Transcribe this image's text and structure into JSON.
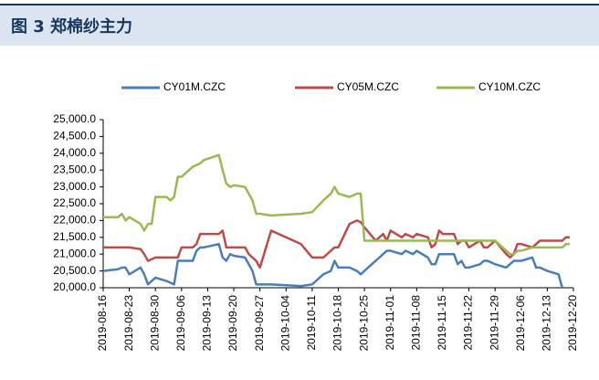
{
  "header": {
    "title": "图 3 郑棉纱主力"
  },
  "chart_data": {
    "type": "line",
    "x": [
      "2019-08-16",
      "2019-08-20",
      "2019-08-21",
      "2019-08-22",
      "2019-08-23",
      "2019-08-26",
      "2019-08-27",
      "2019-08-28",
      "2019-08-29",
      "2019-08-30",
      "2019-09-02",
      "2019-09-03",
      "2019-09-04",
      "2019-09-05",
      "2019-09-06",
      "2019-09-09",
      "2019-09-10",
      "2019-09-11",
      "2019-09-12",
      "2019-09-16",
      "2019-09-17",
      "2019-09-18",
      "2019-09-19",
      "2019-09-20",
      "2019-09-23",
      "2019-09-24",
      "2019-09-25",
      "2019-09-26",
      "2019-09-27",
      "2019-09-30",
      "2019-10-08",
      "2019-10-11",
      "2019-10-14",
      "2019-10-16",
      "2019-10-17",
      "2019-10-18",
      "2019-10-21",
      "2019-10-23",
      "2019-10-24",
      "2019-10-25",
      "2019-10-28",
      "2019-10-29",
      "2019-10-30",
      "2019-10-31",
      "2019-11-01",
      "2019-11-04",
      "2019-11-05",
      "2019-11-07",
      "2019-11-08",
      "2019-11-11",
      "2019-11-12",
      "2019-11-13",
      "2019-11-14",
      "2019-11-15",
      "2019-11-18",
      "2019-11-19",
      "2019-11-20",
      "2019-11-21",
      "2019-11-22",
      "2019-11-25",
      "2019-11-26",
      "2019-11-27",
      "2019-11-29",
      "2019-12-02",
      "2019-12-03",
      "2019-12-04",
      "2019-12-05",
      "2019-12-06",
      "2019-12-09",
      "2019-12-10",
      "2019-12-11",
      "2019-12-13",
      "2019-12-16",
      "2019-12-17",
      "2019-12-18",
      "2019-12-19"
    ],
    "series": [
      {
        "name": "CY01M.CZC",
        "color": "#4a7ebb",
        "values": [
          20500,
          20550,
          20600,
          20600,
          20400,
          20600,
          20400,
          20100,
          20200,
          20300,
          20200,
          20150,
          20100,
          20800,
          20800,
          20800,
          21100,
          21200,
          21200,
          21300,
          20900,
          20800,
          21000,
          20950,
          20900,
          20700,
          20500,
          20100,
          20100,
          20100,
          20050,
          20100,
          20400,
          20500,
          20800,
          20600,
          20600,
          20500,
          20400,
          20500,
          20800,
          20900,
          21000,
          21100,
          21100,
          21000,
          21100,
          21000,
          21100,
          20900,
          20700,
          20700,
          21000,
          21000,
          21000,
          20700,
          20800,
          20600,
          20600,
          20700,
          20800,
          20800,
          20700,
          20600,
          20700,
          20800,
          20800,
          20800,
          20900,
          20600,
          20600,
          20500,
          20400,
          20000,
          null,
          null
        ]
      },
      {
        "name": "CY05M.CZC",
        "color": "#be4b48",
        "values": [
          21200,
          21200,
          21200,
          21200,
          21200,
          21150,
          21000,
          20800,
          20850,
          20900,
          20900,
          20900,
          20900,
          20900,
          21200,
          21200,
          21300,
          21600,
          21600,
          21600,
          21700,
          21200,
          21200,
          21200,
          21200,
          21000,
          20900,
          20800,
          20600,
          21700,
          21300,
          20900,
          20900,
          21100,
          21200,
          21200,
          21900,
          22000,
          21950,
          21800,
          21400,
          21500,
          21600,
          21400,
          21700,
          21500,
          21600,
          21500,
          21600,
          21500,
          21200,
          21300,
          21700,
          21600,
          21600,
          21300,
          21400,
          21400,
          21200,
          21400,
          21200,
          21200,
          21400,
          21000,
          20900,
          21000,
          21300,
          21300,
          21200,
          21300,
          21400,
          21400,
          21400,
          21400,
          21500,
          21500
        ]
      },
      {
        "name": "CY10M.CZC",
        "color": "#98b954",
        "values": [
          22100,
          22100,
          22200,
          22000,
          22100,
          21900,
          21700,
          21900,
          21900,
          22700,
          22700,
          22600,
          22700,
          23300,
          23300,
          23600,
          23650,
          23700,
          23800,
          23950,
          23500,
          23100,
          23000,
          23050,
          23000,
          22800,
          22600,
          22200,
          22200,
          22150,
          22200,
          22250,
          22600,
          22800,
          23000,
          22800,
          22700,
          22800,
          22800,
          21400,
          21400,
          21400,
          21400,
          21400,
          21400,
          21400,
          21400,
          21400,
          21400,
          21400,
          21400,
          21400,
          21400,
          21400,
          21400,
          21400,
          21400,
          21400,
          21400,
          21400,
          21400,
          21400,
          21400,
          21100,
          21000,
          21000,
          21100,
          21100,
          21200,
          21200,
          21200,
          21200,
          21200,
          21200,
          21300,
          21300
        ]
      }
    ],
    "xlim": [
      "2019-08-16",
      "2019-12-20"
    ],
    "xticks": [
      "2019-08-16",
      "2019-08-23",
      "2019-08-30",
      "2019-09-06",
      "2019-09-13",
      "2019-09-20",
      "2019-09-27",
      "2019-10-04",
      "2019-10-11",
      "2019-10-18",
      "2019-10-25",
      "2019-11-01",
      "2019-11-08",
      "2019-11-15",
      "2019-11-22",
      "2019-11-29",
      "2019-12-06",
      "2019-12-13",
      "2019-12-20"
    ],
    "ylim": [
      20000,
      25000
    ],
    "yticks": [
      {
        "value": 20000,
        "label": "20,000.0"
      },
      {
        "value": 20500,
        "label": "20,500.0"
      },
      {
        "value": 21000,
        "label": "21,000.0"
      },
      {
        "value": 21500,
        "label": "21,500.0"
      },
      {
        "value": 22000,
        "label": "22,000.0"
      },
      {
        "value": 22500,
        "label": "22,500.0"
      },
      {
        "value": 23000,
        "label": "23,000.0"
      },
      {
        "value": 23500,
        "label": "23,500.0"
      },
      {
        "value": 24000,
        "label": "24,000.0"
      },
      {
        "value": 24500,
        "label": "24,500.0"
      },
      {
        "value": 25000,
        "label": "25,000.0"
      }
    ],
    "legend": "top"
  }
}
